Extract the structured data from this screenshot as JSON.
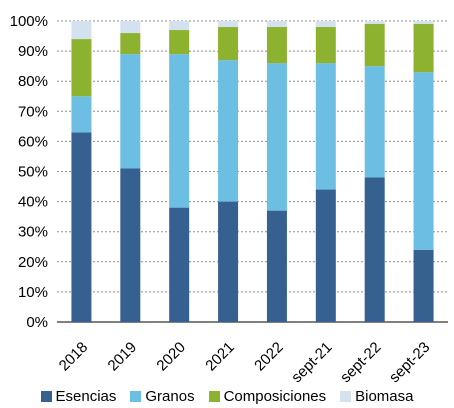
{
  "chart_data": {
    "type": "bar",
    "stacked": true,
    "categories": [
      "2018",
      "2019",
      "2020",
      "2021",
      "2022",
      "sept-21",
      "sept-22",
      "sept-23"
    ],
    "series": [
      {
        "name": "Esencias",
        "color": "#35608F",
        "values": [
          63,
          51,
          38,
          40,
          37,
          44,
          48,
          24
        ]
      },
      {
        "name": "Granos",
        "color": "#6CBEE3",
        "values": [
          12,
          38,
          51,
          47,
          49,
          42,
          37,
          59
        ]
      },
      {
        "name": "Composiciones",
        "color": "#8DB22F",
        "values": [
          19,
          7,
          8,
          11,
          12,
          12,
          14,
          16
        ]
      },
      {
        "name": "Biomasa",
        "color": "#D4E2F0",
        "values": [
          6,
          4,
          3,
          2,
          2,
          2,
          1,
          1
        ]
      }
    ],
    "ylim": [
      0,
      100
    ],
    "yticks": [
      "0%",
      "10%",
      "20%",
      "30%",
      "40%",
      "50%",
      "60%",
      "70%",
      "80%",
      "90%",
      "100%"
    ],
    "grid": true,
    "legend_position": "bottom",
    "title": "",
    "xlabel": "",
    "ylabel": ""
  }
}
